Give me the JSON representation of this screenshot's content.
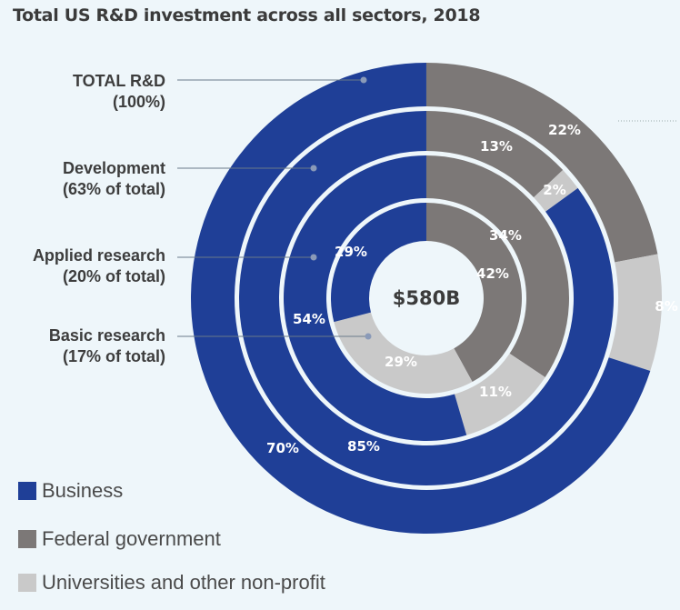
{
  "chart_data": {
    "type": "pie",
    "subtype": "multi-ring donut",
    "title": "Total US R&D investment across all sectors, 2018",
    "center_label": "$580B",
    "categories": [
      "Federal government",
      "Universities and other non-profit",
      "Business"
    ],
    "colors": {
      "Business": "#1f3f97",
      "Federal government": "#7c7877",
      "Universities and other non-profit": "#c9c9c9"
    },
    "rings": [
      {
        "label": "TOTAL R&D",
        "sublabel": "(100%)",
        "values": [
          22,
          8,
          70
        ]
      },
      {
        "label": "Development",
        "sublabel": "(63% of total)",
        "values": [
          13,
          2,
          85
        ]
      },
      {
        "label": "Applied research",
        "sublabel": "(20% of total)",
        "values": [
          34,
          11,
          54
        ]
      },
      {
        "label": "Basic research",
        "sublabel": "(17% of total)",
        "values": [
          42,
          29,
          29
        ]
      }
    ],
    "legend": [
      "Business",
      "Federal government",
      "Universities and other non-profit"
    ],
    "legend_placement": "bottom-left"
  }
}
